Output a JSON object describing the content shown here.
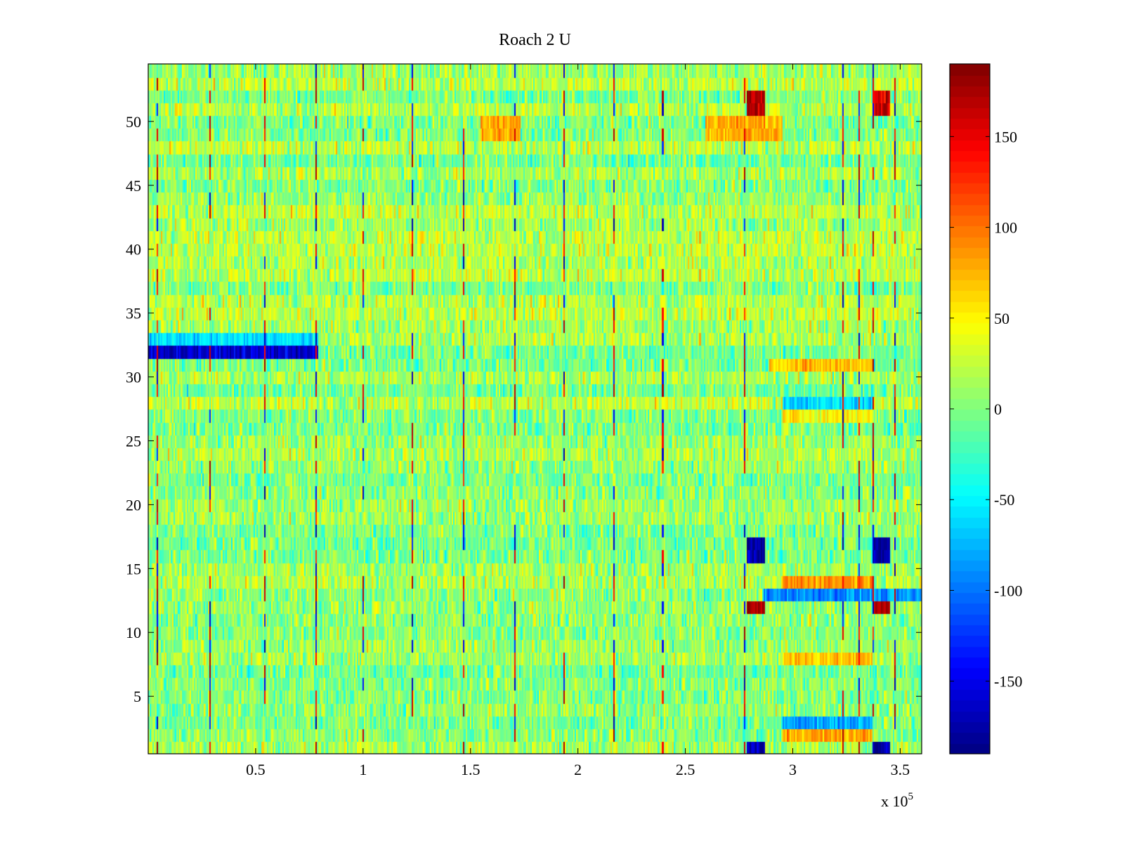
{
  "chart_data": {
    "type": "heatmap",
    "title": "Roach 2 U",
    "xlabel": "",
    "ylabel": "",
    "x_multiplier_label": "x 10",
    "x_multiplier_exponent": "5",
    "xlim": [
      0,
      3.6
    ],
    "ylim": [
      0.5,
      54.5
    ],
    "x_ticks": [
      0.5,
      1,
      1.5,
      2,
      2.5,
      3,
      3.5
    ],
    "x_tick_labels": [
      "0.5",
      "1",
      "1.5",
      "2",
      "2.5",
      "3",
      "3.5"
    ],
    "y_ticks": [
      5,
      10,
      15,
      20,
      25,
      30,
      35,
      40,
      45,
      50
    ],
    "y_tick_labels": [
      "5",
      "10",
      "15",
      "20",
      "25",
      "30",
      "35",
      "40",
      "45",
      "50"
    ],
    "rows": 54,
    "colormap": "jet",
    "clim": [
      -190,
      190
    ],
    "colorbar_ticks": [
      150,
      100,
      50,
      0,
      -50,
      -100,
      -150
    ],
    "colorbar_tick_labels": [
      "150",
      "100",
      "50",
      "0",
      "-50",
      "-100",
      "-150"
    ],
    "background_level": 10,
    "periodic_spike_columns": [
      0.04,
      0.29,
      0.54,
      0.78,
      1.0,
      1.23,
      1.47,
      1.71,
      1.94,
      2.17,
      2.4,
      2.78,
      3.24,
      3.31,
      3.38,
      3.48
    ],
    "features": [
      {
        "desc": "row 32 strong negative band",
        "rows": [
          32,
          32
        ],
        "x": [
          0.0,
          0.79
        ],
        "value": -160
      },
      {
        "desc": "row 33 negative band",
        "rows": [
          33,
          33
        ],
        "x": [
          0.0,
          0.79
        ],
        "value": -60
      },
      {
        "desc": "block near 2.83e5 rows 16-17",
        "rows": [
          16,
          17
        ],
        "x": [
          2.79,
          2.87
        ],
        "value": -180
      },
      {
        "desc": "block near 3.41e5 rows 16-17",
        "rows": [
          16,
          17
        ],
        "x": [
          3.38,
          3.45
        ],
        "value": -180
      },
      {
        "desc": "block near 2.83e5 row 1",
        "rows": [
          1,
          1
        ],
        "x": [
          2.79,
          2.87
        ],
        "value": -170
      },
      {
        "desc": "block near 3.41e5 row 1",
        "rows": [
          1,
          1
        ],
        "x": [
          3.38,
          3.45
        ],
        "value": -170
      },
      {
        "desc": "positive block near 2.83e5 rows 51-52",
        "rows": [
          51,
          52
        ],
        "x": [
          2.79,
          2.87
        ],
        "value": 170
      },
      {
        "desc": "positive block near 3.41e5 rows 51-52",
        "rows": [
          51,
          52
        ],
        "x": [
          3.38,
          3.45
        ],
        "value": 160
      },
      {
        "desc": "positive block near 2.83e5 row 12",
        "rows": [
          12,
          12
        ],
        "x": [
          2.79,
          2.87
        ],
        "value": 170
      },
      {
        "desc": "positive block near 3.41e5 row 12",
        "rows": [
          12,
          12
        ],
        "x": [
          3.38,
          3.45
        ],
        "value": 170
      },
      {
        "desc": "negative row 13 right region",
        "rows": [
          13,
          13
        ],
        "x": [
          2.87,
          3.6
        ],
        "value": -90
      },
      {
        "desc": "positive band row 14",
        "rows": [
          14,
          14
        ],
        "x": [
          2.96,
          3.37
        ],
        "value": 90
      },
      {
        "desc": "positive band row 31",
        "rows": [
          31,
          31
        ],
        "x": [
          2.9,
          3.37
        ],
        "value": 70
      },
      {
        "desc": "positive band row 8",
        "rows": [
          8,
          8
        ],
        "x": [
          2.96,
          3.37
        ],
        "value": 70
      },
      {
        "desc": "positive band row 2",
        "rows": [
          2,
          2
        ],
        "x": [
          2.96,
          3.37
        ],
        "value": 80
      },
      {
        "desc": "negative band row 3",
        "rows": [
          3,
          3
        ],
        "x": [
          2.96,
          3.37
        ],
        "value": -80
      },
      {
        "desc": "negative band row 28",
        "rows": [
          28,
          28
        ],
        "x": [
          2.96,
          3.37
        ],
        "value": -60
      },
      {
        "desc": "positive band row 27",
        "rows": [
          27,
          27
        ],
        "x": [
          2.96,
          3.37
        ],
        "value": 50
      },
      {
        "desc": "positive band rows 49-50 mid",
        "rows": [
          49,
          50
        ],
        "x": [
          1.55,
          1.73
        ],
        "value": 80
      },
      {
        "desc": "positive band rows 49-50 right",
        "rows": [
          49,
          50
        ],
        "x": [
          2.6,
          2.95
        ],
        "value": 80
      }
    ]
  }
}
